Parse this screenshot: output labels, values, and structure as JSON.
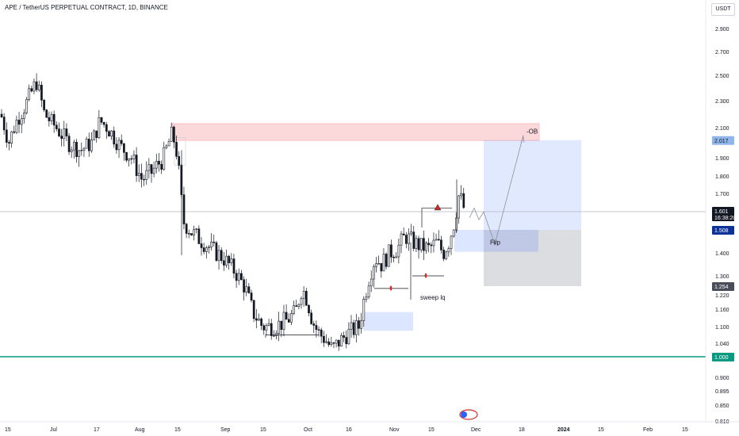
{
  "header": {
    "title": "APE / TetherUS PERPETUAL CONTRACT, 1D, BINANCE",
    "currency": "USDT"
  },
  "chart_data": {
    "type": "candlestick",
    "y_scale": "log",
    "ylim": [
      0.81,
      3.1
    ],
    "price_axis_ticks": [
      "2.900",
      "2.700",
      "2.500",
      "2.300",
      "2.100",
      "1.900",
      "1.800",
      "1.700",
      "1.400",
      "1.300",
      "1.220",
      "1.160",
      "1.100",
      "1.040",
      "0.900",
      "0.895",
      "0.850",
      "0.810"
    ],
    "time_axis_ticks": [
      "15",
      "Jul",
      "17",
      "Aug",
      "15",
      "Sep",
      "15",
      "Oct",
      "16",
      "Nov",
      "15",
      "Dec",
      "18",
      "2024",
      "15",
      "Feb",
      "15"
    ],
    "last_price": "1.601",
    "countdown": "16:38:20",
    "price_labels": [
      {
        "value": "2.017",
        "kind": "target"
      },
      {
        "value": "1.508",
        "kind": "entry"
      },
      {
        "value": "1.254",
        "kind": "stop"
      },
      {
        "value": "1.000",
        "kind": "support"
      }
    ],
    "annotations": [
      {
        "text": "-OB"
      },
      {
        "text": "Flip"
      },
      {
        "text": "sweep lq"
      }
    ],
    "colors": {
      "up": "#131722",
      "down": "#131722",
      "ob_zone": "#f7a8ad",
      "target_zone": "#2962ff",
      "stop_zone": "#787b86",
      "support_line": "#089981",
      "entry_label": "#0c3299",
      "target_label": "#8fb6ea",
      "stop_label": "#4a4e5a",
      "last_price_label": "#131722",
      "marker_red": "#d12c2c"
    }
  }
}
